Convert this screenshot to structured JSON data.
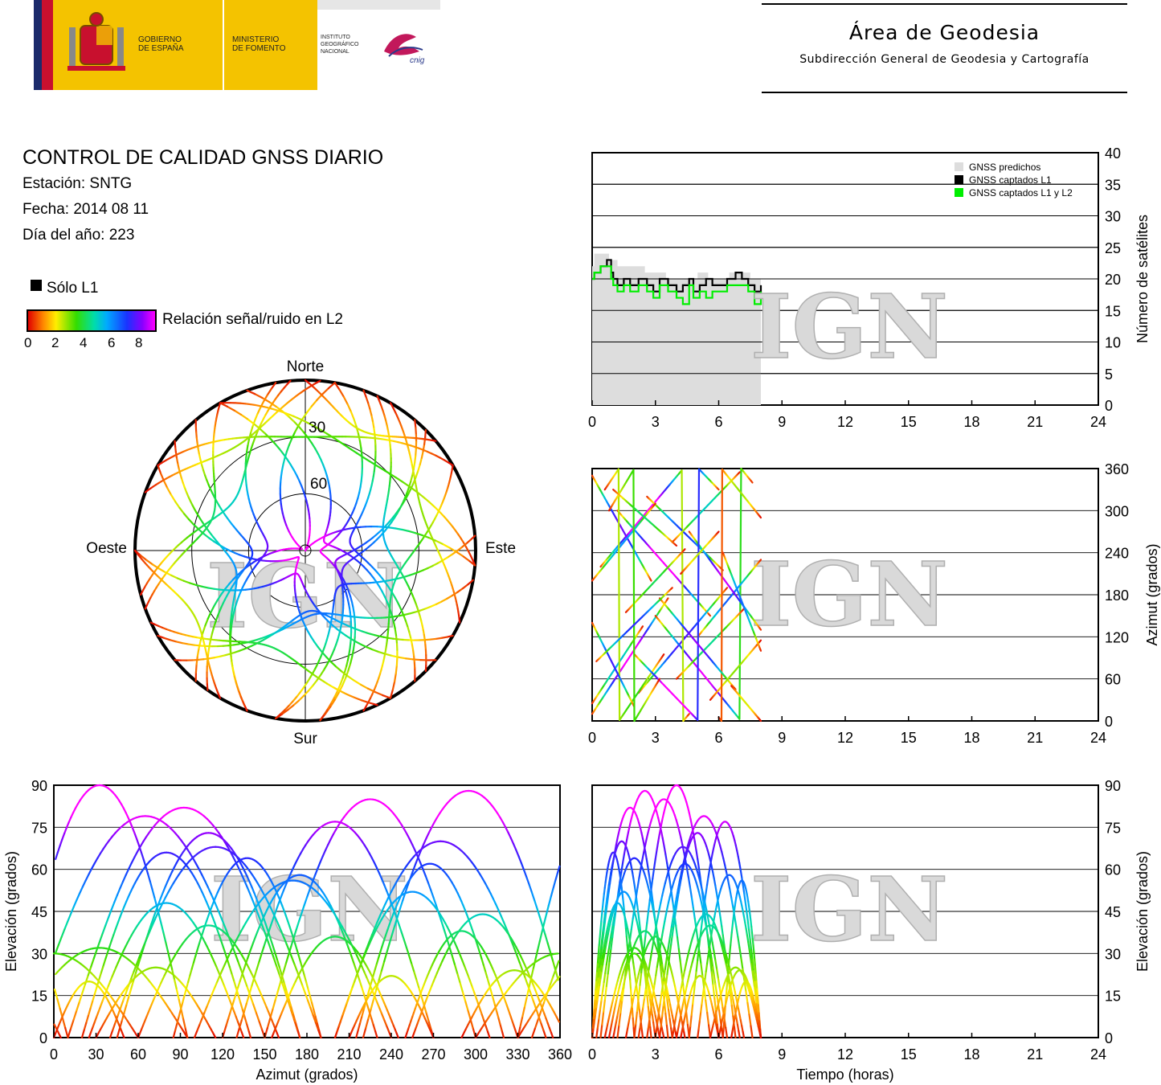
{
  "header": {
    "gov_label": "GOBIERNO\nDE ESPAÑA",
    "ministry_label": "MINISTERIO\nDE FOMENTO",
    "institute_label": "INSTITUTO\nGEOGRÁFICO\nNACIONAL",
    "cnig_label": "cnig",
    "area_title": "Área de Geodesia",
    "area_subtitle": "Subdirección General de Geodesia y Cartografía",
    "colors": {
      "red": "#c8102e",
      "yellow": "#f4c300",
      "navy": "#1b2a6b"
    }
  },
  "info": {
    "title": "CONTROL DE CALIDAD GNSS DIARIO",
    "station": "Estación: SNTG",
    "date": "Fecha: 2014 08 11",
    "doy": "Día del año: 223"
  },
  "legend": {
    "l1_only": "Sólo L1",
    "snr_label": "Relación señal/ruido en L2",
    "snr_ticks": [
      "0",
      "2",
      "4",
      "6",
      "8"
    ]
  },
  "watermark": "IGN",
  "chart_data": [
    {
      "id": "satellite-count",
      "type": "area",
      "xlabel": "",
      "ylabel": "Número de satélites",
      "xlim": [
        0,
        24
      ],
      "ylim": [
        0,
        40
      ],
      "xticks": [
        "0",
        "3",
        "6",
        "9",
        "12",
        "15",
        "18",
        "21",
        "24"
      ],
      "yticks": [
        "0",
        "5",
        "10",
        "15",
        "20",
        "25",
        "30",
        "35",
        "40"
      ],
      "grid": true,
      "legend_position": "top-right",
      "series": [
        {
          "name": "GNSS predichos",
          "color": "#dddddd",
          "x": [
            0,
            0.1,
            0.4,
            0.8,
            1.2,
            1.6,
            2.0,
            2.5,
            3.0,
            3.5,
            4.0,
            4.5,
            5.0,
            5.5,
            6.0,
            6.5,
            7.0,
            7.5,
            8.0
          ],
          "y": [
            22,
            24,
            24,
            23,
            22,
            22,
            22,
            21,
            21,
            20,
            20,
            20,
            21,
            20,
            20,
            21,
            21,
            20,
            20
          ]
        },
        {
          "name": "GNSS captados L1",
          "color": "#000000",
          "x": [
            0,
            0.1,
            0.4,
            0.7,
            0.9,
            1.0,
            1.2,
            1.5,
            1.8,
            2.2,
            2.6,
            2.9,
            3.2,
            3.6,
            4.0,
            4.3,
            4.6,
            4.8,
            5.1,
            5.4,
            5.7,
            6.0,
            6.4,
            6.8,
            7.1,
            7.4,
            7.7,
            8.0
          ],
          "y": [
            20,
            21,
            22,
            23,
            21,
            20,
            19,
            20,
            19,
            20,
            19,
            18,
            20,
            19,
            18,
            19,
            20,
            18,
            19,
            20,
            19,
            19,
            20,
            21,
            20,
            19,
            18,
            19
          ]
        },
        {
          "name": "GNSS captados L1 y L2",
          "color": "#00ee00",
          "x": [
            0,
            0.1,
            0.4,
            0.7,
            0.9,
            1.0,
            1.2,
            1.5,
            1.8,
            2.2,
            2.6,
            2.9,
            3.2,
            3.6,
            4.0,
            4.3,
            4.6,
            4.8,
            5.1,
            5.4,
            5.7,
            6.0,
            6.4,
            6.8,
            7.1,
            7.4,
            7.7,
            8.0
          ],
          "y": [
            20,
            21,
            22,
            22,
            20,
            19,
            18,
            19,
            18,
            19,
            18,
            17,
            19,
            18,
            17,
            16,
            19,
            17,
            18,
            17,
            18,
            18,
            19,
            19,
            19,
            18,
            16,
            18
          ]
        }
      ]
    },
    {
      "id": "skyplot",
      "type": "scatter",
      "title": "",
      "directions": {
        "north": "Norte",
        "south": "Sur",
        "east": "Este",
        "west": "Oeste"
      },
      "elevation_rings": [
        "30",
        "60"
      ],
      "colorscale": "SNR L2 0–8"
    },
    {
      "id": "azimuth-time",
      "type": "scatter",
      "xlabel": "",
      "ylabel": "Azimut (grados)",
      "xlim": [
        0,
        24
      ],
      "ylim": [
        0,
        360
      ],
      "xticks": [
        "0",
        "3",
        "6",
        "9",
        "12",
        "15",
        "18",
        "21",
        "24"
      ],
      "yticks": [
        "0",
        "60",
        "120",
        "180",
        "240",
        "300",
        "360"
      ],
      "grid": true
    },
    {
      "id": "elevation-azimuth",
      "type": "scatter",
      "xlabel": "Azimut (grados)",
      "ylabel": "Elevación (grados)",
      "xlim": [
        0,
        360
      ],
      "ylim": [
        0,
        90
      ],
      "xticks": [
        "0",
        "30",
        "60",
        "90",
        "120",
        "150",
        "180",
        "210",
        "240",
        "270",
        "300",
        "330",
        "360"
      ],
      "yticks": [
        "0",
        "15",
        "30",
        "45",
        "60",
        "75",
        "90"
      ],
      "grid": true
    },
    {
      "id": "elevation-time",
      "type": "scatter",
      "xlabel": "Tiempo (horas)",
      "ylabel": "Elevación (grados)",
      "xlim": [
        0,
        24
      ],
      "ylim": [
        0,
        90
      ],
      "xticks": [
        "0",
        "3",
        "6",
        "9",
        "12",
        "15",
        "18",
        "21",
        "24"
      ],
      "yticks": [
        "0",
        "15",
        "30",
        "45",
        "60",
        "75",
        "90"
      ],
      "grid": true
    }
  ],
  "passes": [
    {
      "az0": 10,
      "az1": 175,
      "emax": 82,
      "t0": 0.0,
      "t1": 3.6
    },
    {
      "az0": 350,
      "az1": 200,
      "emax": 70,
      "t0": 0.0,
      "t1": 2.8
    },
    {
      "az0": 300,
      "az1": 150,
      "emax": 85,
      "t0": 1.2,
      "t1": 5.6
    },
    {
      "az0": 40,
      "az1": 190,
      "emax": 68,
      "t0": 2.2,
      "t1": 6.4
    },
    {
      "az0": 150,
      "az1": 340,
      "emax": 79,
      "t0": 3.0,
      "t1": 7.6
    },
    {
      "az0": 220,
      "az1": 10,
      "emax": 88,
      "t0": 0.4,
      "t1": 4.6
    },
    {
      "az0": 25,
      "az1": 135,
      "emax": 48,
      "t0": 0.0,
      "t1": 2.4
    },
    {
      "az0": 320,
      "az1": 215,
      "emax": 62,
      "t0": 2.6,
      "t1": 6.2
    },
    {
      "az0": 60,
      "az1": 160,
      "emax": 40,
      "t0": 4.0,
      "t1": 7.2
    },
    {
      "az0": 200,
      "az1": 310,
      "emax": 52,
      "t0": 0.0,
      "t1": 3.0
    },
    {
      "az0": 120,
      "az1": 230,
      "emax": 58,
      "t0": 5.0,
      "t1": 8.0
    },
    {
      "az0": 330,
      "az1": 95,
      "emax": 32,
      "t0": 0.6,
      "t1": 3.4
    },
    {
      "az0": 255,
      "az1": 355,
      "emax": 44,
      "t0": 3.8,
      "t1": 7.0
    },
    {
      "az0": 30,
      "az1": 115,
      "emax": 25,
      "t0": 5.6,
      "t1": 8.0
    },
    {
      "az0": 155,
      "az1": 245,
      "emax": 36,
      "t0": 1.6,
      "t1": 4.4
    },
    {
      "az0": 270,
      "az1": 130,
      "emax": 77,
      "t0": 4.6,
      "t1": 8.0
    },
    {
      "az0": 95,
      "az1": 330,
      "emax": 90,
      "t0": 2.0,
      "t1": 6.0
    },
    {
      "az0": 5,
      "az1": 290,
      "emax": 24,
      "t0": 6.0,
      "t1": 8.0
    },
    {
      "az0": 140,
      "az1": 20,
      "emax": 66,
      "t0": 0.0,
      "t1": 2.0
    },
    {
      "az0": 240,
      "az1": 100,
      "emax": 56,
      "t0": 6.2,
      "t1": 8.0
    },
    {
      "az0": 175,
      "az1": 45,
      "emax": 73,
      "t0": 3.2,
      "t1": 6.8
    },
    {
      "az0": 300,
      "az1": 60,
      "emax": 30,
      "t0": 0.8,
      "t1": 3.2
    },
    {
      "az0": 50,
      "az1": 0,
      "emax": 20,
      "t0": 6.6,
      "t1": 8.0
    },
    {
      "az0": 210,
      "az1": 270,
      "emax": 22,
      "t0": 4.2,
      "t1": 6.0
    },
    {
      "az0": 330,
      "az1": 250,
      "emax": 38,
      "t0": 1.0,
      "t1": 4.0
    },
    {
      "az0": 85,
      "az1": 190,
      "emax": 64,
      "t0": 0.2,
      "t1": 3.8
    }
  ]
}
